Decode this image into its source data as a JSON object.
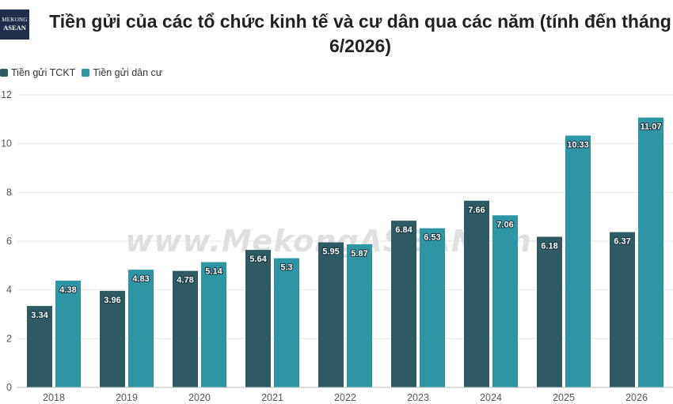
{
  "logo": {
    "line1": "MEKONG",
    "line2": "ASEAN"
  },
  "title": "Tiền gửi của các tổ chức kinh tế và cư dân qua các năm (tính đến tháng 6/2026)",
  "watermark": "www.MekongASEAN.vn",
  "colors": {
    "tckt": "#2f5a64",
    "dancu": "#2e96a2",
    "grid": "#e6e6e6",
    "axis": "#555555"
  },
  "chart_data": {
    "type": "bar",
    "categories": [
      "2018",
      "2019",
      "2020",
      "2021",
      "2022",
      "2023",
      "2024",
      "2025",
      "2026"
    ],
    "series": [
      {
        "name": "Tiền gửi TCKT",
        "values": [
          3.34,
          3.96,
          4.78,
          5.64,
          5.95,
          6.84,
          7.66,
          6.18,
          6.37
        ]
      },
      {
        "name": "Tiền gửi dân cư",
        "values": [
          4.38,
          4.83,
          5.14,
          5.3,
          5.87,
          6.53,
          7.06,
          10.33,
          11.07
        ]
      }
    ],
    "yticks": [
      0,
      2,
      4,
      6,
      8,
      10,
      12
    ],
    "ylim": [
      0,
      12
    ],
    "grid": true,
    "legend": "top-left"
  }
}
